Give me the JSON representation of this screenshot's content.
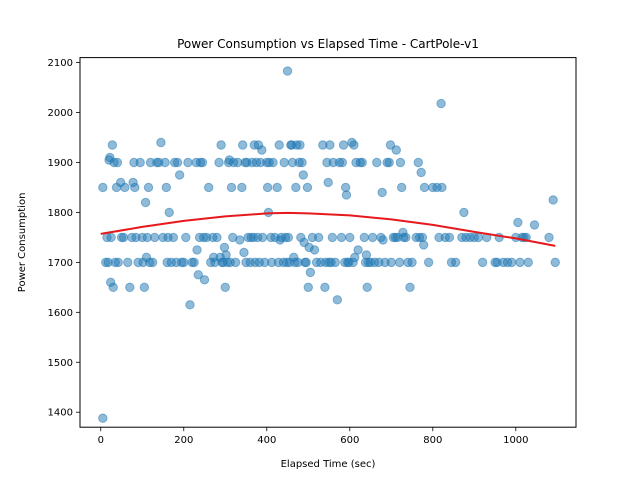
{
  "chart_data": {
    "type": "scatter",
    "title": "Power Consumption vs Elapsed Time - CartPole-v1",
    "xlabel": "Elapsed Time (sec)",
    "ylabel": "Power Consumption",
    "xlim": [
      -50,
      1145
    ],
    "ylim": [
      1370,
      2110
    ],
    "x_ticks": [
      0,
      200,
      400,
      600,
      800,
      1000
    ],
    "y_ticks": [
      1400,
      1500,
      1600,
      1700,
      1800,
      1900,
      2000,
      2100
    ],
    "grid": false,
    "legend": "none",
    "colors": {
      "points": "#1f77b4",
      "trend": "#e6191c"
    },
    "series": [
      {
        "type": "scatter",
        "points": [
          [
            5,
            1388
          ],
          [
            5,
            1850
          ],
          [
            12,
            1700
          ],
          [
            15,
            1750
          ],
          [
            18,
            1700
          ],
          [
            20,
            1905
          ],
          [
            22,
            1910
          ],
          [
            24,
            1660
          ],
          [
            25,
            1750
          ],
          [
            28,
            1935
          ],
          [
            30,
            1650
          ],
          [
            32,
            1900
          ],
          [
            35,
            1700
          ],
          [
            38,
            1850
          ],
          [
            40,
            1900
          ],
          [
            42,
            1700
          ],
          [
            48,
            1860
          ],
          [
            50,
            1750
          ],
          [
            55,
            1750
          ],
          [
            58,
            1850
          ],
          [
            65,
            1700
          ],
          [
            70,
            1650
          ],
          [
            75,
            1750
          ],
          [
            78,
            1860
          ],
          [
            80,
            1900
          ],
          [
            82,
            1850
          ],
          [
            85,
            1750
          ],
          [
            90,
            1700
          ],
          [
            95,
            1900
          ],
          [
            100,
            1750
          ],
          [
            102,
            1700
          ],
          [
            105,
            1650
          ],
          [
            108,
            1820
          ],
          [
            110,
            1710
          ],
          [
            112,
            1750
          ],
          [
            115,
            1850
          ],
          [
            118,
            1700
          ],
          [
            120,
            1900
          ],
          [
            125,
            1700
          ],
          [
            130,
            1750
          ],
          [
            135,
            1900
          ],
          [
            140,
            1900
          ],
          [
            145,
            1940
          ],
          [
            150,
            1750
          ],
          [
            155,
            1900
          ],
          [
            158,
            1850
          ],
          [
            160,
            1700
          ],
          [
            162,
            1750
          ],
          [
            165,
            1800
          ],
          [
            170,
            1700
          ],
          [
            175,
            1750
          ],
          [
            178,
            1900
          ],
          [
            182,
            1700
          ],
          [
            185,
            1900
          ],
          [
            190,
            1875
          ],
          [
            195,
            1700
          ],
          [
            200,
            1700
          ],
          [
            205,
            1750
          ],
          [
            210,
            1900
          ],
          [
            215,
            1615
          ],
          [
            220,
            1700
          ],
          [
            225,
            1700
          ],
          [
            230,
            1900
          ],
          [
            232,
            1725
          ],
          [
            235,
            1675
          ],
          [
            238,
            1750
          ],
          [
            240,
            1900
          ],
          [
            245,
            1900
          ],
          [
            248,
            1750
          ],
          [
            250,
            1665
          ],
          [
            255,
            1750
          ],
          [
            260,
            1850
          ],
          [
            265,
            1700
          ],
          [
            270,
            1750
          ],
          [
            272,
            1710
          ],
          [
            275,
            1700
          ],
          [
            280,
            1750
          ],
          [
            285,
            1900
          ],
          [
            288,
            1710
          ],
          [
            290,
            1935
          ],
          [
            292,
            1700
          ],
          [
            295,
            1700
          ],
          [
            298,
            1730
          ],
          [
            300,
            1650
          ],
          [
            302,
            1715
          ],
          [
            305,
            1700
          ],
          [
            308,
            1900
          ],
          [
            310,
            1905
          ],
          [
            312,
            1700
          ],
          [
            315,
            1850
          ],
          [
            318,
            1750
          ],
          [
            320,
            1900
          ],
          [
            325,
            1700
          ],
          [
            330,
            1900
          ],
          [
            335,
            1745
          ],
          [
            340,
            1850
          ],
          [
            342,
            1935
          ],
          [
            345,
            1720
          ],
          [
            348,
            1900
          ],
          [
            350,
            1700
          ],
          [
            352,
            1900
          ],
          [
            355,
            1750
          ],
          [
            360,
            1700
          ],
          [
            362,
            1750
          ],
          [
            365,
            1900
          ],
          [
            368,
            1750
          ],
          [
            370,
            1935
          ],
          [
            372,
            1700
          ],
          [
            375,
            1900
          ],
          [
            378,
            1750
          ],
          [
            380,
            1935
          ],
          [
            382,
            1700
          ],
          [
            385,
            1900
          ],
          [
            388,
            1925
          ],
          [
            390,
            1750
          ],
          [
            395,
            1700
          ],
          [
            400,
            1900
          ],
          [
            402,
            1850
          ],
          [
            404,
            1800
          ],
          [
            406,
            1900
          ],
          [
            410,
            1750
          ],
          [
            412,
            1700
          ],
          [
            415,
            1900
          ],
          [
            420,
            1750
          ],
          [
            425,
            1850
          ],
          [
            428,
            1700
          ],
          [
            430,
            1935
          ],
          [
            432,
            1745
          ],
          [
            435,
            1750
          ],
          [
            440,
            1700
          ],
          [
            442,
            1900
          ],
          [
            445,
            1750
          ],
          [
            448,
            1700
          ],
          [
            450,
            2083
          ],
          [
            452,
            1750
          ],
          [
            455,
            1700
          ],
          [
            458,
            1935
          ],
          [
            460,
            1935
          ],
          [
            462,
            1900
          ],
          [
            465,
            1710
          ],
          [
            468,
            1700
          ],
          [
            470,
            1850
          ],
          [
            472,
            1935
          ],
          [
            475,
            1700
          ],
          [
            478,
            1900
          ],
          [
            480,
            1935
          ],
          [
            482,
            1750
          ],
          [
            485,
            1900
          ],
          [
            488,
            1875
          ],
          [
            490,
            1740
          ],
          [
            492,
            1700
          ],
          [
            495,
            1700
          ],
          [
            498,
            1850
          ],
          [
            500,
            1650
          ],
          [
            502,
            1730
          ],
          [
            505,
            1680
          ],
          [
            510,
            1750
          ],
          [
            515,
            1725
          ],
          [
            520,
            1700
          ],
          [
            525,
            1750
          ],
          [
            530,
            1700
          ],
          [
            535,
            1935
          ],
          [
            540,
            1650
          ],
          [
            542,
            1700
          ],
          [
            545,
            1900
          ],
          [
            548,
            1860
          ],
          [
            550,
            1700
          ],
          [
            552,
            1935
          ],
          [
            555,
            1700
          ],
          [
            558,
            1750
          ],
          [
            560,
            1900
          ],
          [
            565,
            1700
          ],
          [
            570,
            1625
          ],
          [
            575,
            1900
          ],
          [
            580,
            1750
          ],
          [
            582,
            1900
          ],
          [
            585,
            1935
          ],
          [
            588,
            1700
          ],
          [
            590,
            1850
          ],
          [
            592,
            1835
          ],
          [
            595,
            1700
          ],
          [
            598,
            1700
          ],
          [
            600,
            1750
          ],
          [
            605,
            1940
          ],
          [
            608,
            1700
          ],
          [
            610,
            1935
          ],
          [
            612,
            1710
          ],
          [
            615,
            1900
          ],
          [
            620,
            1725
          ],
          [
            625,
            1900
          ],
          [
            630,
            1900
          ],
          [
            635,
            1750
          ],
          [
            638,
            1700
          ],
          [
            640,
            1715
          ],
          [
            642,
            1650
          ],
          [
            645,
            1700
          ],
          [
            650,
            1700
          ],
          [
            655,
            1750
          ],
          [
            660,
            1700
          ],
          [
            665,
            1900
          ],
          [
            670,
            1700
          ],
          [
            675,
            1750
          ],
          [
            678,
            1840
          ],
          [
            680,
            1745
          ],
          [
            685,
            1700
          ],
          [
            690,
            1900
          ],
          [
            695,
            1900
          ],
          [
            698,
            1935
          ],
          [
            700,
            1700
          ],
          [
            705,
            1750
          ],
          [
            710,
            1750
          ],
          [
            712,
            1925
          ],
          [
            715,
            1750
          ],
          [
            720,
            1700
          ],
          [
            722,
            1900
          ],
          [
            725,
            1850
          ],
          [
            728,
            1760
          ],
          [
            730,
            1750
          ],
          [
            735,
            1750
          ],
          [
            740,
            1700
          ],
          [
            745,
            1650
          ],
          [
            750,
            1700
          ],
          [
            760,
            1750
          ],
          [
            765,
            1900
          ],
          [
            768,
            1750
          ],
          [
            772,
            1880
          ],
          [
            775,
            1750
          ],
          [
            778,
            1735
          ],
          [
            780,
            1850
          ],
          [
            790,
            1700
          ],
          [
            800,
            1850
          ],
          [
            810,
            1850
          ],
          [
            815,
            1750
          ],
          [
            820,
            2018
          ],
          [
            822,
            1850
          ],
          [
            830,
            1750
          ],
          [
            840,
            1750
          ],
          [
            845,
            1700
          ],
          [
            855,
            1700
          ],
          [
            870,
            1750
          ],
          [
            875,
            1800
          ],
          [
            880,
            1750
          ],
          [
            890,
            1750
          ],
          [
            900,
            1750
          ],
          [
            910,
            1750
          ],
          [
            920,
            1700
          ],
          [
            930,
            1750
          ],
          [
            950,
            1700
          ],
          [
            955,
            1700
          ],
          [
            960,
            1750
          ],
          [
            970,
            1700
          ],
          [
            980,
            1700
          ],
          [
            990,
            1700
          ],
          [
            1000,
            1750
          ],
          [
            1005,
            1780
          ],
          [
            1010,
            1700
          ],
          [
            1015,
            1750
          ],
          [
            1020,
            1750
          ],
          [
            1025,
            1750
          ],
          [
            1030,
            1700
          ],
          [
            1045,
            1775
          ],
          [
            1080,
            1750
          ],
          [
            1090,
            1825
          ],
          [
            1095,
            1700
          ]
        ]
      },
      {
        "type": "line",
        "x": [
          0,
          100,
          200,
          300,
          400,
          450,
          500,
          600,
          700,
          800,
          900,
          1000,
          1095
        ],
        "y": [
          1757,
          1771,
          1783,
          1792,
          1798,
          1799,
          1798,
          1794,
          1786,
          1775,
          1761,
          1748,
          1733
        ]
      }
    ]
  }
}
